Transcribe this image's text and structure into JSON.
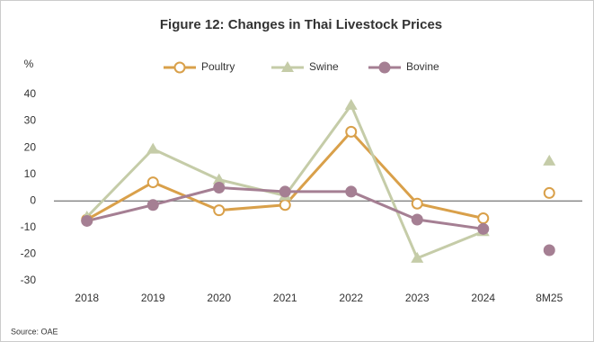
{
  "chart_data": {
    "type": "line",
    "title": "Figure 12: Changes in Thai Livestock Prices",
    "y_label": "%",
    "source": "Source: OAE",
    "categories": [
      "2018",
      "2019",
      "2020",
      "2021",
      "2022",
      "2023",
      "2024",
      "8M25"
    ],
    "unconnected_categories": [
      "8M25"
    ],
    "series": [
      {
        "name": "Poultry",
        "color": "#d9a04a",
        "marker": "hollow-circle",
        "values": [
          -7,
          7,
          -3.5,
          -1.5,
          26,
          -1,
          -6.5,
          3
        ]
      },
      {
        "name": "Swine",
        "color": "#c5cca8",
        "marker": "triangle",
        "values": [
          -6,
          19.5,
          8,
          2,
          36,
          -21.5,
          -11.5,
          15
        ]
      },
      {
        "name": "Bovine",
        "color": "#a57f93",
        "marker": "circle",
        "values": [
          -7.5,
          -1.5,
          5,
          3.5,
          3.5,
          -7,
          -10.5,
          -18.5
        ]
      }
    ],
    "ylim": [
      -30,
      40
    ],
    "yticks": [
      -30,
      -20,
      -10,
      0,
      10,
      20,
      30,
      40
    ],
    "legend": "top"
  }
}
